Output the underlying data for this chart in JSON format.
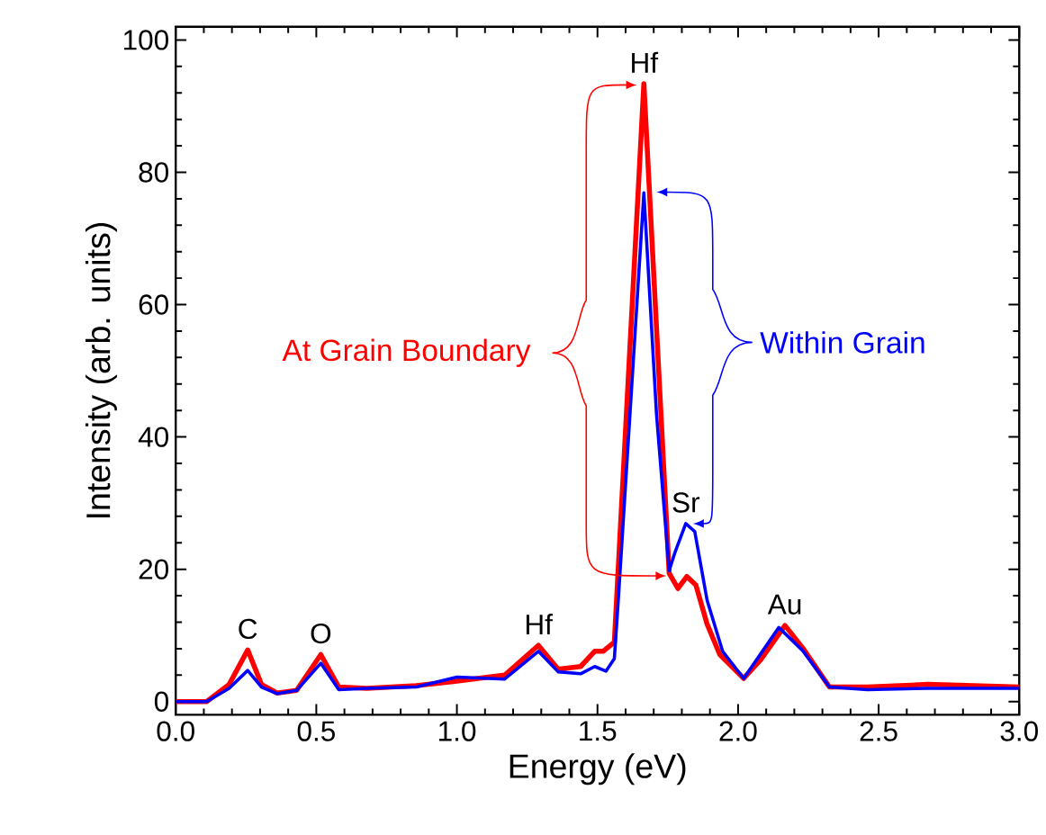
{
  "chart_data": {
    "type": "line",
    "xlabel": "Energy (eV)",
    "ylabel": "Intensity (arb. units)",
    "xlim": [
      0,
      3
    ],
    "ylim": [
      -2,
      102
    ],
    "xticks": [
      {
        "value": 0,
        "label": "0.0"
      },
      0.5,
      {
        "value": 1,
        "label": "1.0"
      },
      1.5,
      {
        "value": 2,
        "label": "2.0"
      },
      2.5,
      {
        "value": 3,
        "label": "3.0"
      }
    ],
    "yticks": [
      0,
      20,
      40,
      60,
      80,
      100
    ],
    "series": [
      {
        "name": "At Grain Boundary",
        "color": "#ff0000",
        "x": [
          0,
          0.11,
          0.19,
          0.256,
          0.305,
          0.36,
          0.43,
          0.516,
          0.58,
          0.68,
          0.855,
          1.0,
          1.17,
          1.29,
          1.36,
          1.44,
          1.49,
          1.52,
          1.56,
          1.665,
          1.755,
          1.786,
          1.818,
          1.85,
          1.89,
          1.935,
          2.02,
          2.08,
          2.167,
          2.23,
          2.325,
          2.46,
          2.675,
          3.0
        ],
        "values": [
          0,
          0,
          2.6,
          7.8,
          2.6,
          1.3,
          1.7,
          7.1,
          2.2,
          2.0,
          2.4,
          3.1,
          4.0,
          8.5,
          4.9,
          5.3,
          7.6,
          7.6,
          9.0,
          93.4,
          19.4,
          17.1,
          18.9,
          17.6,
          11.7,
          7.1,
          3.5,
          6.3,
          11.5,
          8.1,
          2.2,
          2.2,
          2.6,
          2.2
        ]
      },
      {
        "name": "Within Grain",
        "color": "#0000ff",
        "x": [
          0,
          0.11,
          0.19,
          0.256,
          0.305,
          0.36,
          0.43,
          0.516,
          0.58,
          0.68,
          0.855,
          1.0,
          1.17,
          1.29,
          1.36,
          1.44,
          1.49,
          1.53,
          1.56,
          1.575,
          1.665,
          1.71,
          1.755,
          1.776,
          1.814,
          1.846,
          1.89,
          1.945,
          2.02,
          2.145,
          2.23,
          2.325,
          2.46,
          2.675,
          3.0
        ],
        "values": [
          0,
          0,
          2.0,
          4.7,
          2.2,
          1.2,
          1.7,
          5.8,
          1.8,
          2.0,
          2.2,
          3.7,
          3.4,
          7.6,
          4.5,
          4.2,
          5.3,
          4.6,
          6.5,
          16,
          76.9,
          43.4,
          19.8,
          22.6,
          26.9,
          25.7,
          15.3,
          7.6,
          3.5,
          11.2,
          7.7,
          2.2,
          1.8,
          2.0,
          2.0
        ]
      }
    ],
    "annotations": [
      {
        "text": "C",
        "x": 0.256,
        "y": 7.8
      },
      {
        "text": "O",
        "x": 0.516,
        "y": 7.1
      },
      {
        "text": "Hf",
        "x": 1.29,
        "y": 8.5
      },
      {
        "text": "Hf",
        "x": 1.665,
        "y": 93.4
      },
      {
        "text": "Sr",
        "x": 1.814,
        "y": 26.9
      },
      {
        "text": "Au",
        "x": 2.167,
        "y": 11.5
      }
    ]
  }
}
